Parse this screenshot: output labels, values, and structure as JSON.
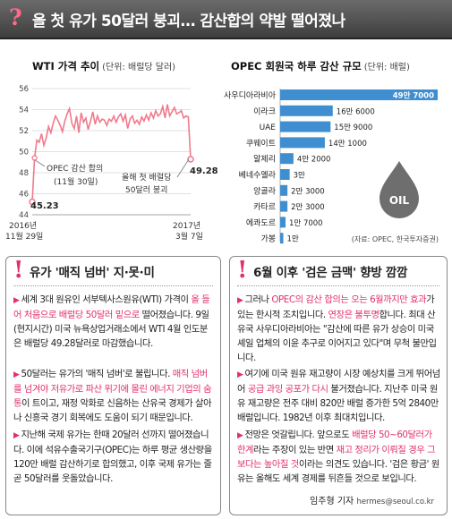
{
  "headline": {
    "title": "올 첫 유가 50달러 붕괴… 감산합의 약발 떨어졌나"
  },
  "chart_data": [
    {
      "type": "line",
      "title": "WTI 가격 추이",
      "unit": "(단위: 배럴당 달러)",
      "ylim": [
        44,
        56
      ],
      "yticks": [
        "44",
        "46",
        "48",
        "50",
        "52",
        "54",
        "56"
      ],
      "x_start_label": [
        "2016년",
        "11월 29일"
      ],
      "x_end_label": [
        "2017년",
        "3월 7일"
      ],
      "series": [
        {
          "values": [
            45.23,
            49.4,
            51.1,
            50.9,
            51.7,
            50.6,
            51.3,
            52.4,
            51.8,
            52.7,
            53.4,
            53.0,
            52.5,
            51.9,
            52.9,
            53.6,
            54.1,
            52.7,
            52.2,
            53.4,
            51.8,
            53.7,
            52.8,
            53.2,
            52.1,
            52.9,
            53.8,
            52.6,
            53.4,
            52.8,
            53.1,
            53.0,
            52.5,
            53.1,
            52.9,
            53.4,
            52.8,
            53.3,
            53.6,
            52.9,
            53.5,
            52.2,
            53.1,
            53.4,
            52.7,
            53.0,
            52.6,
            53.3,
            52.9,
            53.5,
            53.0,
            53.7,
            53.2,
            53.9,
            53.4,
            53.6,
            54.3,
            53.2,
            54.5,
            53.4,
            53.8,
            54.2,
            53.6,
            53.7,
            53.9,
            53.2,
            53.4,
            53.3,
            49.28
          ]
        }
      ],
      "labels": {
        "start": "45.23",
        "end": "49.28",
        "opec_note_1": "OPEC 감산 합의",
        "opec_note_2": "(11월 30일)",
        "collapse_note_1": "올해 첫 배럴당",
        "collapse_note_2": "50달러 붕괴"
      }
    },
    {
      "type": "bar",
      "title": "OPEC 회원국 하루 감산 규모",
      "unit": "(단위: 배럴)",
      "categories": [
        "사우디아라비아",
        "이라크",
        "UAE",
        "쿠웨이트",
        "알제리",
        "베네수엘라",
        "앙골라",
        "카타르",
        "에콰도르",
        "가봉"
      ],
      "values": [
        497000,
        166000,
        159000,
        141000,
        42000,
        30000,
        23000,
        23000,
        17000,
        10000
      ],
      "value_labels": [
        "49만 7000",
        "16만 6000",
        "15만 9000",
        "14만 1000",
        "4만 2000",
        "3만",
        "2만 3000",
        "2만 3000",
        "1만 7000",
        "1만"
      ],
      "source": "(자료: OPEC, 한국투자증권)",
      "oil_label": "OIL"
    }
  ],
  "box_left": {
    "heading": "유가 '매직 넘버' 지·못·미",
    "p1": [
      {
        "t": "세계 3대 원유인 서부텍사스원유(WTI) 가격이 "
      },
      {
        "t": "올 들어 처음으로 배럴당 50달러 밑으로",
        "hl": true
      },
      {
        "t": " 떨어졌습니다. 9일(현지시간) 미국 뉴욕상업거래소에서 WTI 4월 인도분은 배럴당 49.28달러로 마감했습니다."
      }
    ],
    "p2": [
      {
        "t": "50달러는 유가의 '매직 넘버'로 불립니다. "
      },
      {
        "t": "매직 넘버를 넘겨야 저유가로 파산 위기에 몰린 에너지 기업의 숨통",
        "hl": true
      },
      {
        "t": "이 트이고, 재정 악화로 신음하는 산유국 경제가 살아나 신흥국 경기 회복에도 도움이 되기 때문입니다."
      }
    ],
    "p3": [
      {
        "t": "지난해 국제 유가는 한때 20달러 선까지 떨어졌습니다. 이에 석유수출국기구(OPEC)는 하루 평균 생산량을 120만 배럴 감산하기로 합의했고, 이후 국제 유가는 줄곧 50달러를 웃돌았습니다."
      }
    ]
  },
  "box_right": {
    "heading": "6월 이후 '검은 금맥' 향방 깜깜",
    "p1": [
      {
        "t": "그러나 "
      },
      {
        "t": "OPEC의 감산 합의는 오는 6월까지만 효과",
        "hl": true
      },
      {
        "t": "가 있는 한시적 조치입니다. "
      },
      {
        "t": "연장은 불투명",
        "hl": true
      },
      {
        "t": "합니다. 최대 산유국 사우디아라비아는 \"감산에 따른 유가 상승이 미국 셰일 업체의 이윤 추구로 이어지고 있다\"며 무척 불만입니다."
      }
    ],
    "p2": [
      {
        "t": "여기에 미국 원유 재고량이 시장 예상치를 크게 뛰어넘어 "
      },
      {
        "t": "공급 과잉 공포가 다시",
        "hl": true
      },
      {
        "t": " 불거졌습니다. 지난주 미국 원유 재고량은 전주 대비 820만 배럴 증가한 5억 2840만 배럴입니다. 1982년 이후 최대치입니다."
      }
    ],
    "p3": [
      {
        "t": "전망은 엇갈립니다. 앞으로도 "
      },
      {
        "t": "배럴당 50~60달러가 한계",
        "hl": true
      },
      {
        "t": "라는 주장이 있는 반면 "
      },
      {
        "t": "재고 정리가 이뤄질 경우 그보다는 높아질 것",
        "hl": true
      },
      {
        "t": "이라는 의견도 있습니다. '검은 황금' 원유는 올해도 세계 경제를 뒤흔들 것으로 보입니다."
      }
    ],
    "byline": "임주형 기자",
    "email": "hermes@seoul.co.kr"
  },
  "colors": {
    "header_bg": "#4a4a4a",
    "accent": "#e2306c",
    "line": "#f07a8c",
    "bar": "#3f8fd0",
    "oil_drop": "#6e6e6e"
  }
}
